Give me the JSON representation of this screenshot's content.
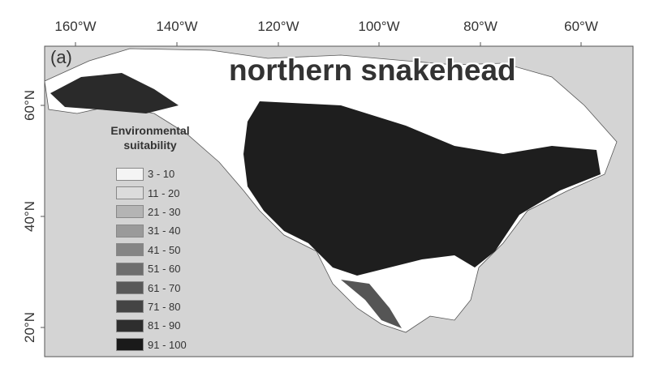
{
  "title": "northern snakehead",
  "panel_label": "(a)",
  "x_ticks": [
    "160°W",
    "140°W",
    "120°W",
    "100°W",
    "80°W",
    "60°W"
  ],
  "y_ticks": [
    "60°N",
    "40°N",
    "20°N"
  ],
  "legend": {
    "title_line1": "Environmental",
    "title_line2": "suitability",
    "items": [
      {
        "label": "3 - 10",
        "color": "#f4f4f4"
      },
      {
        "label": "11 - 20",
        "color": "#dcdcdc"
      },
      {
        "label": "21 - 30",
        "color": "#b4b4b4"
      },
      {
        "label": "31 - 40",
        "color": "#9a9a9a"
      },
      {
        "label": "41 - 50",
        "color": "#858585"
      },
      {
        "label": "51 - 60",
        "color": "#6e6e6e"
      },
      {
        "label": "61 - 70",
        "color": "#595959"
      },
      {
        "label": "71 - 80",
        "color": "#444444"
      },
      {
        "label": "81 - 90",
        "color": "#2e2e2e"
      },
      {
        "label": "91 - 100",
        "color": "#1a1a1a"
      }
    ]
  },
  "colors": {
    "ocean": "#d4d4d4",
    "land_unsuitable": "#ffffff",
    "high_suitability": "#1e1e1e"
  }
}
